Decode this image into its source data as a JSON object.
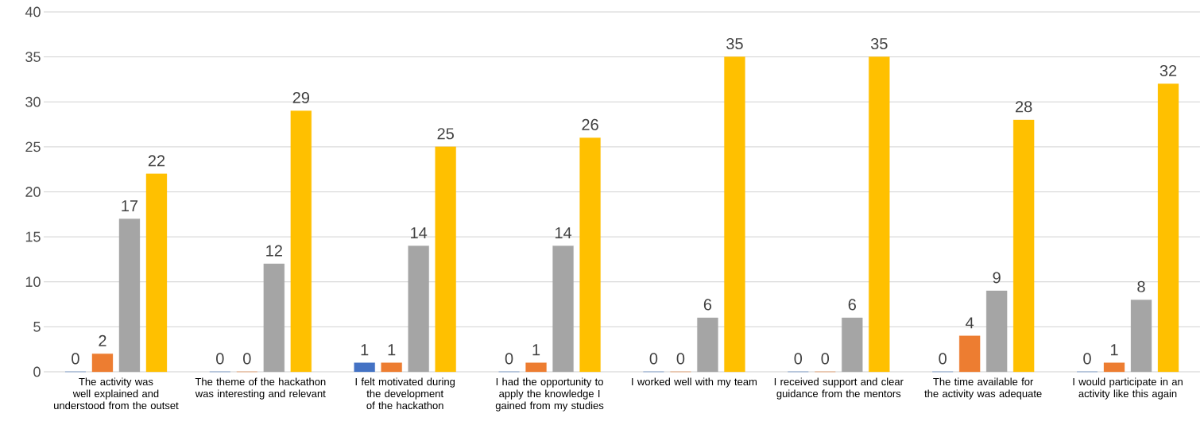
{
  "chart_data": {
    "type": "bar",
    "categories": [
      "The activity was well explained and understood from the outset",
      "The theme of the hackathon was interesting and relevant",
      "I felt motivated during the development of the hackathon",
      "I had the opportunity to apply the knowledge I gained from my studies",
      "I worked well with my team",
      "I received support and clear guidance from the mentors",
      "The time available for the activity was adequate",
      "I would participate in an activity like this again"
    ],
    "series": [
      {
        "color": "#4472c4",
        "values": [
          0,
          0,
          1,
          0,
          0,
          0,
          0,
          0
        ]
      },
      {
        "color": "#ed7d31",
        "values": [
          2,
          0,
          1,
          1,
          0,
          0,
          4,
          1
        ]
      },
      {
        "color": "#a5a5a5",
        "values": [
          17,
          12,
          14,
          14,
          6,
          6,
          9,
          8
        ]
      },
      {
        "color": "#ffc000",
        "values": [
          22,
          29,
          25,
          26,
          35,
          35,
          28,
          32
        ]
      }
    ],
    "ylim": [
      0,
      40
    ],
    "yticks": [
      0,
      5,
      10,
      15,
      20,
      25,
      30,
      35,
      40
    ],
    "grid": "y",
    "data_labels": true
  }
}
